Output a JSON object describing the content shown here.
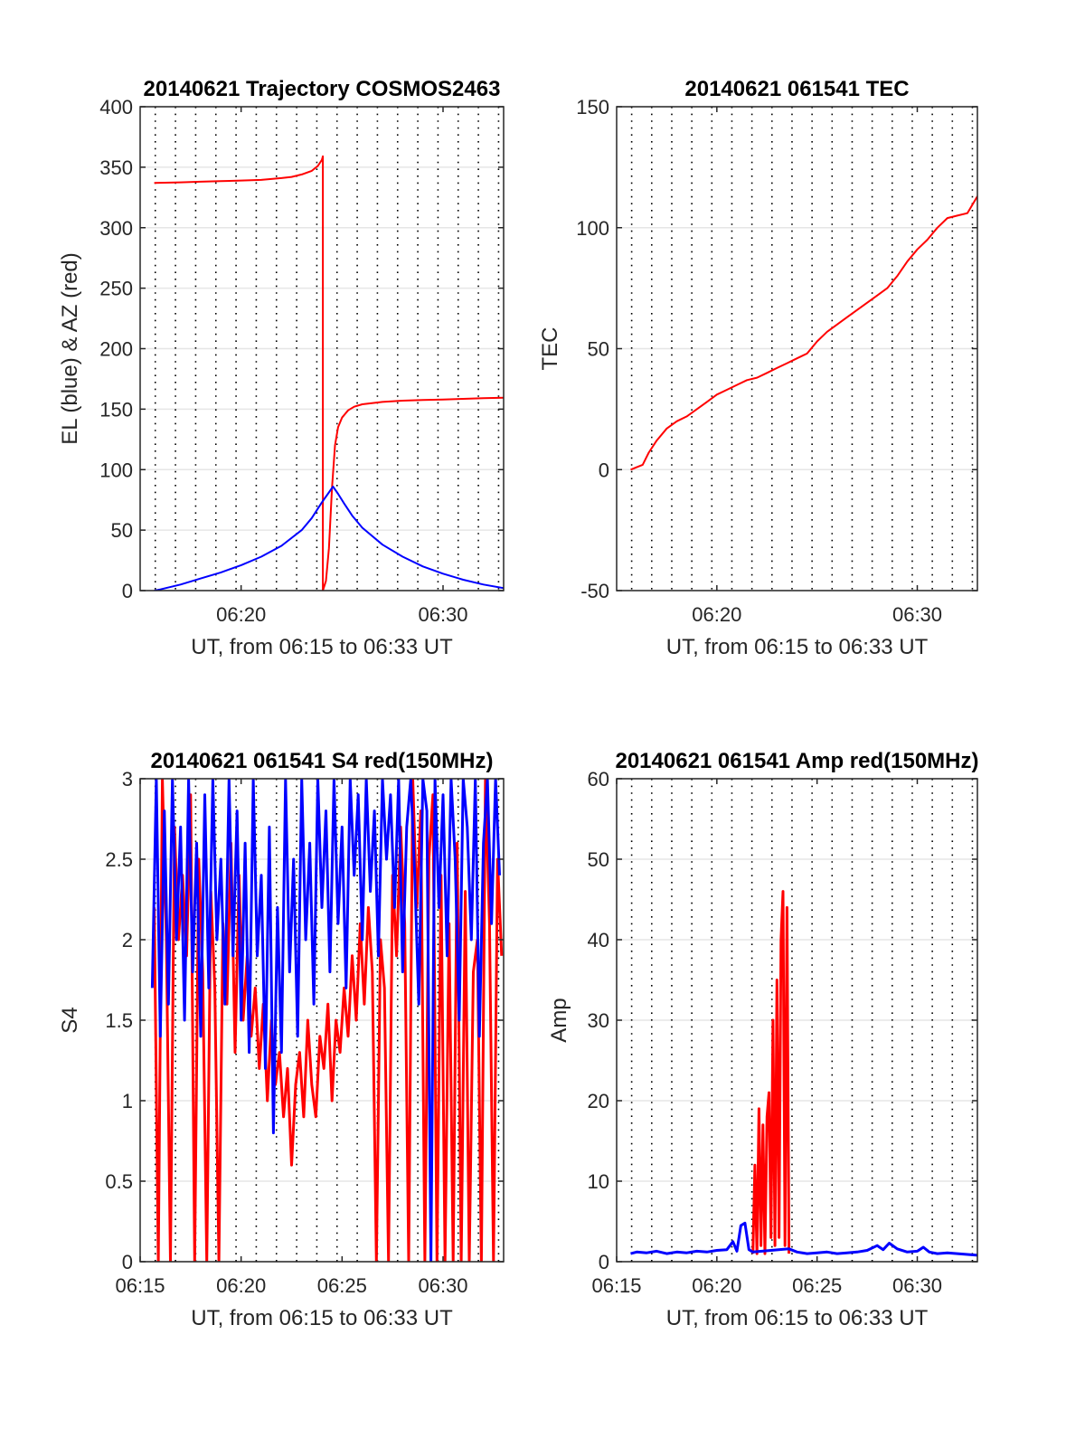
{
  "chart_data": [
    {
      "type": "line",
      "title": "20140621 Trajectory COSMOS2463",
      "xlabel": "UT, from 06:15 to 06:33 UT",
      "ylabel": "EL (blue) & AZ (red)",
      "xlim": [
        15.0,
        33.0
      ],
      "ylim": [
        0,
        400
      ],
      "yticks": [
        0,
        50,
        100,
        150,
        200,
        250,
        300,
        350,
        400
      ],
      "xticks": [
        20,
        30
      ],
      "xtick_labels": [
        "06:20",
        "06:30"
      ],
      "grid": true,
      "series": [
        {
          "color": "#ff0000",
          "x": [
            15.7,
            17,
            18,
            19,
            20,
            21,
            22,
            22.5,
            23,
            23.5,
            23.8,
            24.0,
            24.05,
            24.05,
            24.2,
            24.35,
            24.5,
            24.65,
            24.8,
            25.0,
            25.3,
            25.6,
            26,
            27,
            28,
            29,
            30,
            31,
            32,
            33
          ],
          "y": [
            337,
            337.5,
            338,
            338.5,
            339,
            339.5,
            341,
            342,
            344,
            347,
            351,
            356,
            359,
            0,
            8,
            35,
            85,
            120,
            135,
            143,
            149,
            152,
            154,
            156,
            157,
            157.5,
            158,
            158.5,
            159,
            159.5
          ]
        },
        {
          "color": "#0000ff",
          "x": [
            15.7,
            16,
            17,
            18,
            19,
            20,
            21,
            22,
            23,
            23.5,
            24,
            24.3,
            24.55,
            24.8,
            25.1,
            25.5,
            26,
            27,
            28,
            29,
            30,
            31,
            32,
            33
          ],
          "y": [
            0,
            1,
            5,
            10,
            15,
            21,
            28,
            37,
            50,
            60,
            73,
            80,
            86,
            80,
            72,
            62,
            52,
            38,
            28,
            20,
            14,
            9,
            5,
            2
          ]
        }
      ]
    },
    {
      "type": "line",
      "title": "20140621 061541 TEC",
      "xlabel": "UT, from 06:15 to 06:33 UT",
      "ylabel": "TEC",
      "xlim": [
        15.0,
        33.0
      ],
      "ylim": [
        -50,
        150
      ],
      "yticks": [
        -50,
        0,
        50,
        100,
        150
      ],
      "xticks": [
        20,
        30
      ],
      "xtick_labels": [
        "06:20",
        "06:30"
      ],
      "grid": true,
      "series": [
        {
          "color": "#ff0000",
          "x": [
            15.7,
            16.0,
            16.3,
            16.6,
            17.0,
            17.5,
            18,
            18.5,
            19,
            19.5,
            20,
            20.5,
            21,
            21.5,
            22,
            22.5,
            23,
            23.5,
            24,
            24.5,
            25,
            25.5,
            26,
            26.5,
            27,
            27.5,
            28,
            28.5,
            29,
            29.5,
            30,
            30.5,
            31,
            31.5,
            32,
            32.5,
            33
          ],
          "y": [
            0,
            1,
            2,
            7,
            12,
            17,
            20,
            22,
            25,
            28,
            31,
            33,
            35,
            37,
            38,
            40,
            42,
            44,
            46,
            48,
            53,
            57,
            60,
            63,
            66,
            69,
            72,
            75,
            80,
            86,
            91,
            95,
            100,
            104,
            105,
            106,
            113
          ]
        }
      ]
    },
    {
      "type": "line",
      "title": "20140621 061541 S4 red(150MHz)",
      "xlabel": "UT, from 06:15 to 06:33 UT",
      "ylabel": "S4",
      "xlim": [
        15.0,
        33.0
      ],
      "ylim": [
        0,
        3
      ],
      "yticks": [
        0,
        0.5,
        1,
        1.5,
        2,
        2.5,
        3
      ],
      "ytick_labels": [
        "0",
        "0.5",
        "1",
        "1.5",
        "2",
        "2.5",
        "3"
      ],
      "xticks": [
        15,
        20,
        25,
        30
      ],
      "xtick_labels": [
        "06:15",
        "06:20",
        "06:25",
        "06:30"
      ],
      "grid": true,
      "series": [
        {
          "color": "#ff0000",
          "x": [
            15.7,
            15.9,
            16.1,
            16.3,
            16.5,
            16.7,
            16.9,
            17.1,
            17.3,
            17.5,
            17.7,
            17.9,
            18.1,
            18.3,
            18.5,
            18.7,
            18.9,
            19.1,
            19.3,
            19.5,
            19.7,
            19.9,
            20.1,
            20.3,
            20.5,
            20.7,
            20.9,
            21.1,
            21.3,
            21.5,
            21.7,
            21.9,
            22.1,
            22.3,
            22.5,
            22.7,
            22.9,
            23.1,
            23.3,
            23.5,
            23.7,
            23.9,
            24.1,
            24.3,
            24.5,
            24.7,
            24.9,
            25.1,
            25.3,
            25.5,
            25.7,
            25.9,
            26.1,
            26.3,
            26.5,
            26.7,
            26.9,
            27.1,
            27.3,
            27.5,
            27.7,
            27.9,
            28.1,
            28.3,
            28.5,
            28.7,
            28.9,
            29.1,
            29.3,
            29.5,
            29.7,
            29.9,
            30.1,
            30.3,
            30.5,
            30.7,
            30.9,
            31.1,
            31.3,
            31.5,
            31.7,
            31.9,
            32.1,
            32.3,
            32.5,
            32.7,
            32.9
          ],
          "y": [
            2.2,
            0,
            3.0,
            2.0,
            0,
            2.7,
            2.0,
            2.4,
            1.9,
            2.9,
            0,
            2.5,
            1.8,
            0,
            2.3,
            1.7,
            0,
            2.1,
            1.6,
            2.6,
            1.3,
            2.4,
            1.5,
            1.9,
            1.4,
            1.7,
            1.2,
            1.6,
            1.0,
            1.5,
            1.1,
            1.3,
            0.9,
            1.2,
            0.6,
            1.1,
            1.3,
            0.9,
            1.5,
            1.1,
            0.9,
            1.4,
            1.2,
            1.6,
            1.0,
            1.5,
            1.3,
            1.7,
            1.4,
            1.9,
            1.5,
            2.1,
            1.6,
            2.2,
            1.8,
            0,
            2.0,
            1.7,
            0,
            2.4,
            1.9,
            2.7,
            2.1,
            0,
            3.0,
            2.2,
            2.8,
            0,
            2.5,
            2.9,
            0,
            2.4,
            0,
            2.1,
            0,
            2.6,
            0,
            2.3,
            0,
            1.8,
            2.0,
            0,
            3.0,
            2.1,
            0,
            2.5,
            1.9
          ]
        },
        {
          "color": "#0000ff",
          "x": [
            15.6,
            15.8,
            16.0,
            16.2,
            16.4,
            16.6,
            16.8,
            17.0,
            17.2,
            17.4,
            17.6,
            17.8,
            18.0,
            18.2,
            18.4,
            18.6,
            18.8,
            19.0,
            19.2,
            19.4,
            19.6,
            19.8,
            20.0,
            20.2,
            20.4,
            20.6,
            20.8,
            21.0,
            21.2,
            21.4,
            21.6,
            21.8,
            22.0,
            22.2,
            22.4,
            22.6,
            22.8,
            23.0,
            23.2,
            23.4,
            23.6,
            23.8,
            24.0,
            24.2,
            24.4,
            24.6,
            24.8,
            25.0,
            25.2,
            25.4,
            25.6,
            25.8,
            26.0,
            26.2,
            26.4,
            26.6,
            26.8,
            27.0,
            27.2,
            27.4,
            27.6,
            27.8,
            28.0,
            28.2,
            28.4,
            28.6,
            28.8,
            29.0,
            29.2,
            29.4,
            29.6,
            29.8,
            30.0,
            30.2,
            30.4,
            30.6,
            30.8,
            31.0,
            31.2,
            31.4,
            31.6,
            31.8,
            32.0,
            32.2,
            32.4,
            32.6,
            32.8
          ],
          "y": [
            1.7,
            3.0,
            1.4,
            2.8,
            1.6,
            3.0,
            2.0,
            2.7,
            1.5,
            3.0,
            1.8,
            2.6,
            1.4,
            2.9,
            1.7,
            3.0,
            2.0,
            2.5,
            1.6,
            3.0,
            1.9,
            2.8,
            1.5,
            2.6,
            1.3,
            3.0,
            1.9,
            2.4,
            1.2,
            2.7,
            0.8,
            2.2,
            1.3,
            3.0,
            1.8,
            2.5,
            1.4,
            3.0,
            2.0,
            2.6,
            1.6,
            3.0,
            2.2,
            2.8,
            1.8,
            3.0,
            2.1,
            2.7,
            1.7,
            3.0,
            2.4,
            2.9,
            2.0,
            3.0,
            2.3,
            2.8,
            1.9,
            3.0,
            2.5,
            2.9,
            2.2,
            3.0,
            1.8,
            2.7,
            3.0,
            2.4,
            1.6,
            3.0,
            2.8,
            0,
            3.0,
            2.2,
            2.9,
            1.9,
            3.0,
            2.5,
            1.5,
            3.0,
            2.7,
            2.0,
            3.0,
            1.4,
            2.6,
            3.0,
            2.1,
            3.0,
            2.4
          ]
        }
      ]
    },
    {
      "type": "line",
      "title": "20140621 061541 Amp red(150MHz)",
      "xlabel": "UT, from 06:15 to 06:33 UT",
      "ylabel": "Amp",
      "xlim": [
        15.0,
        33.0
      ],
      "ylim": [
        0,
        60
      ],
      "yticks": [
        0,
        10,
        20,
        30,
        40,
        50,
        60
      ],
      "xticks": [
        15,
        20,
        25,
        30
      ],
      "xtick_labels": [
        "06:15",
        "06:20",
        "06:25",
        "06:30"
      ],
      "grid": true,
      "series": [
        {
          "color": "#ff0000",
          "x": [
            21.8,
            21.9,
            22.0,
            22.1,
            22.2,
            22.3,
            22.4,
            22.5,
            22.6,
            22.7,
            22.8,
            22.9,
            23.0,
            23.1,
            23.2,
            23.3,
            23.4,
            23.5,
            23.6
          ],
          "y": [
            1,
            12,
            1,
            19,
            2,
            17,
            1,
            18,
            21,
            3,
            30,
            2,
            35,
            3,
            40,
            46,
            2,
            44,
            1
          ]
        },
        {
          "color": "#0000ff",
          "x": [
            15.7,
            16.0,
            16.5,
            17.0,
            17.5,
            18.0,
            18.5,
            19.0,
            19.5,
            20.0,
            20.5,
            20.8,
            21.0,
            21.2,
            21.4,
            21.6,
            21.8,
            23.6,
            24.0,
            24.5,
            25.0,
            25.5,
            26.0,
            26.5,
            27.0,
            27.5,
            28.0,
            28.3,
            28.6,
            29.0,
            29.5,
            30.0,
            30.3,
            30.6,
            31.0,
            31.5,
            32.0,
            32.5,
            33.0
          ],
          "y": [
            1.0,
            1.2,
            1.1,
            1.3,
            1.0,
            1.2,
            1.1,
            1.3,
            1.2,
            1.4,
            1.5,
            2.5,
            1.3,
            4.5,
            4.8,
            1.5,
            1.2,
            1.6,
            1.2,
            1.0,
            1.1,
            1.2,
            1.0,
            1.1,
            1.2,
            1.4,
            2.0,
            1.5,
            2.3,
            1.6,
            1.2,
            1.3,
            1.8,
            1.2,
            1.0,
            1.1,
            1.0,
            0.9,
            0.8
          ]
        }
      ]
    }
  ]
}
